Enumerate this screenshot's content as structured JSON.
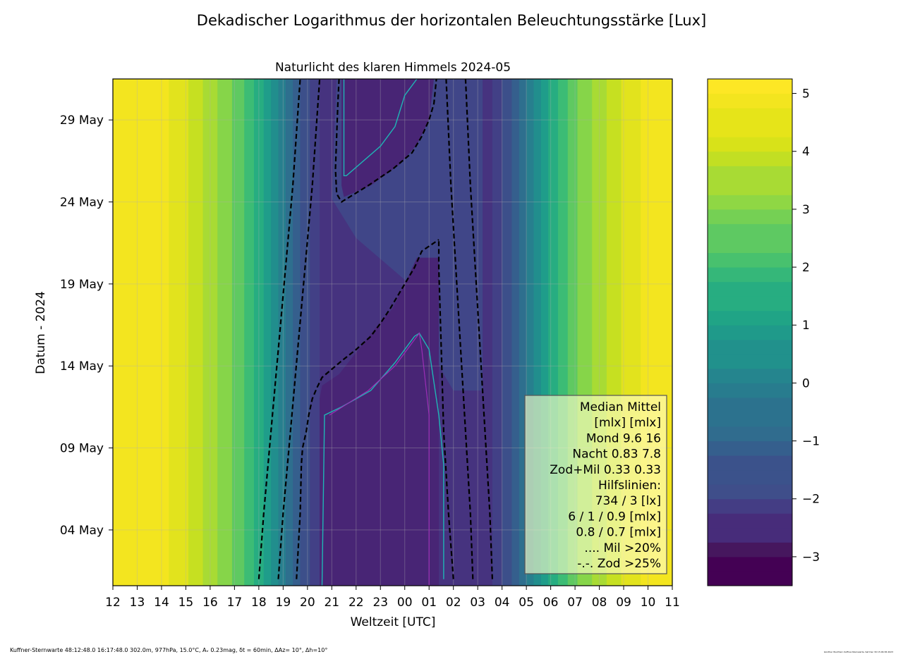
{
  "figure": {
    "suptitle": "Dekadischer Logarithmus der horizontalen Beleuchtungsstärke [Lux]",
    "footer_left": "Kuffner-Sternwarte 48:12:48.0 16:17:48.0 302.0m,  977hPa, 15.0°C, Aᵥ 0.23mag, δt = 60min, ΔAz= 10°, Δh=10°",
    "footer_right": "Günther Wuchterl, Kuffner-Sternwarte, Sat Dec 30 15:46:36 2023"
  },
  "chart_data": {
    "type": "heatmap",
    "title": "Naturlicht des klaren Himmels 2024-05",
    "xlabel": "Weltzeit [UTC]",
    "ylabel": "Datum - 2024",
    "x_ticks": [
      "12",
      "13",
      "14",
      "15",
      "16",
      "17",
      "18",
      "19",
      "20",
      "21",
      "22",
      "23",
      "00",
      "01",
      "02",
      "03",
      "04",
      "05",
      "06",
      "07",
      "08",
      "09",
      "10",
      "11"
    ],
    "y_ticks": [
      {
        "label": "04 May",
        "day": 4
      },
      {
        "label": "09 May",
        "day": 9
      },
      {
        "label": "14 May",
        "day": 14
      },
      {
        "label": "19 May",
        "day": 19
      },
      {
        "label": "24 May",
        "day": 24
      },
      {
        "label": "29 May",
        "day": 29
      }
    ],
    "x_range_hours_utc": [
      12,
      35
    ],
    "y_range_days": [
      0.6,
      31.5
    ],
    "grid": true,
    "colorbar": {
      "range": [
        -3.5,
        5.25
      ],
      "ticks": [
        "5",
        "4",
        "3",
        "2",
        "1",
        "0",
        "−1",
        "−2",
        "−3"
      ],
      "tick_values": [
        5,
        4,
        3,
        2,
        1,
        0,
        -1,
        -2,
        -3
      ]
    },
    "dashed_contours_hour_utc": {
      "sunset_734lx": [
        [
          1,
          18.0
        ],
        [
          5,
          18.2
        ],
        [
          10,
          18.5
        ],
        [
          15,
          18.8
        ],
        [
          20,
          19.1
        ],
        [
          25,
          19.4
        ],
        [
          31.5,
          19.7
        ]
      ],
      "sunrise_734lx": [
        [
          1,
          27.6
        ],
        [
          5,
          27.5
        ],
        [
          10,
          27.3
        ],
        [
          15,
          27.1
        ],
        [
          20,
          26.9
        ],
        [
          25,
          26.7
        ],
        [
          31.5,
          26.5
        ]
      ],
      "dusk_3lx": [
        [
          1,
          18.8
        ],
        [
          5,
          19.0
        ],
        [
          10,
          19.3
        ],
        [
          15,
          19.6
        ],
        [
          20,
          19.9
        ],
        [
          25,
          20.2
        ],
        [
          31.5,
          20.5
        ]
      ],
      "dawn_3lx": [
        [
          1,
          26.8
        ],
        [
          5,
          26.7
        ],
        [
          10,
          26.5
        ],
        [
          15,
          26.3
        ],
        [
          20,
          26.1
        ],
        [
          25,
          25.9
        ],
        [
          31.5,
          25.7
        ]
      ],
      "night_6mlx_lower": [
        [
          1,
          19.55
        ],
        [
          5,
          19.7
        ],
        [
          8,
          19.75
        ],
        [
          9,
          19.8
        ],
        [
          10,
          19.95
        ],
        [
          11,
          20.05
        ],
        [
          12,
          20.2
        ],
        [
          12.7,
          20.4
        ],
        [
          13.3,
          20.6
        ],
        [
          14.3,
          21.4
        ],
        [
          15,
          22.0
        ],
        [
          15.8,
          22.6
        ],
        [
          16.6,
          23.0
        ],
        [
          17.5,
          23.4
        ],
        [
          19,
          24.0
        ],
        [
          20,
          24.4
        ],
        [
          21,
          24.7
        ],
        [
          21.7,
          25.4
        ]
      ],
      "night_6mlx_right": [
        [
          1,
          26.0
        ],
        [
          5,
          25.8
        ],
        [
          10,
          25.6
        ],
        [
          15,
          25.5
        ],
        [
          20,
          25.4
        ],
        [
          21.7,
          25.4
        ]
      ],
      "night_6mlx_upper": [
        [
          31.5,
          21.3
        ],
        [
          30,
          21.25
        ],
        [
          28,
          21.2
        ],
        [
          26,
          21.15
        ],
        [
          24.5,
          21.2
        ],
        [
          24,
          21.4
        ],
        [
          25,
          22.5
        ],
        [
          26,
          23.5
        ],
        [
          27,
          24.3
        ],
        [
          28,
          24.7
        ],
        [
          29,
          25.0
        ],
        [
          30,
          25.2
        ],
        [
          31.5,
          25.3
        ]
      ]
    },
    "legend": {
      "lines": [
        "Median Mittel ",
        "[mlx]  [mlx] ",
        "Mond  9.6  16",
        "Nacht 0.83 7.8",
        "Zod+Mil 0.33  0.33",
        "Hilfslinien:",
        "734 / 3  [lx]",
        "6 /  1 / 0.9 [mlx]",
        "0.8 / 0.7 [mlx]",
        ".... Mil >20%",
        "-.-. Zod >25%"
      ],
      "placement": "bottom-right"
    }
  }
}
